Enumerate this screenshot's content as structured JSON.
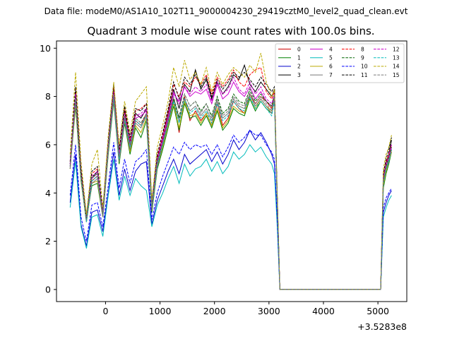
{
  "chart_data": {
    "type": "line",
    "suptitle": "Data file: modeM0/AS1A10_102T11_9000004230_29419cztM0_level2_quad_clean.evt",
    "title": "Quadrant 3 module wise count rates with 100.0s bins.",
    "xlabel": "",
    "ylabel": "",
    "x_offset_label": "+3.5283e8",
    "xlim": [
      -900,
      5530
    ],
    "ylim": [
      -0.5,
      10.3
    ],
    "xticks": [
      "0",
      "1000",
      "2000",
      "3000",
      "4000",
      "5000"
    ],
    "yticks": [
      "0",
      "2",
      "4",
      "6",
      "8",
      "10"
    ],
    "grid": false,
    "legend_position": "top-right",
    "x": [
      -650,
      -550,
      -450,
      -350,
      -250,
      -150,
      -50,
      50,
      150,
      250,
      350,
      450,
      550,
      650,
      750,
      850,
      950,
      1050,
      1150,
      1250,
      1350,
      1450,
      1550,
      1650,
      1750,
      1850,
      1950,
      2050,
      2150,
      2250,
      2350,
      2450,
      2550,
      2650,
      2750,
      2850,
      2950,
      3050,
      3100,
      3150,
      3200,
      5050,
      5100,
      5150,
      5200,
      5250
    ],
    "series": [
      {
        "name": "0",
        "color": "#cc0000",
        "dash": "solid",
        "values": [
          5.1,
          7.9,
          4.6,
          2.8,
          4.5,
          4.7,
          3.1,
          5.8,
          8.0,
          5.4,
          7.1,
          5.9,
          7.0,
          6.8,
          7.3,
          3.4,
          5.2,
          6.1,
          7.0,
          7.9,
          6.5,
          8.0,
          7.0,
          7.4,
          7.0,
          7.3,
          6.8,
          7.7,
          6.8,
          7.1,
          7.8,
          7.5,
          7.3,
          8.1,
          7.7,
          8.0,
          7.8,
          7.5,
          8.1,
          3.9,
          0.0,
          0.0,
          4.4,
          5.0,
          5.4,
          5.8
        ]
      },
      {
        "name": "1",
        "color": "#008000",
        "dash": "solid",
        "values": [
          5.0,
          7.6,
          4.5,
          2.9,
          4.3,
          4.4,
          3.0,
          5.6,
          7.8,
          5.2,
          6.9,
          5.6,
          6.7,
          6.3,
          7.0,
          3.2,
          5.0,
          5.8,
          6.7,
          7.6,
          6.6,
          7.7,
          7.1,
          7.2,
          6.8,
          7.2,
          6.7,
          7.4,
          6.6,
          6.9,
          7.5,
          7.3,
          7.2,
          7.9,
          7.4,
          7.8,
          7.5,
          7.3,
          7.9,
          3.8,
          0.0,
          0.0,
          4.2,
          4.8,
          5.2,
          5.7
        ]
      },
      {
        "name": "2",
        "color": "#0000cc",
        "dash": "solid",
        "values": [
          3.6,
          5.6,
          2.7,
          1.8,
          3.2,
          3.3,
          2.4,
          4.0,
          5.7,
          3.9,
          5.0,
          4.1,
          4.9,
          5.2,
          5.3,
          2.7,
          3.7,
          4.3,
          4.9,
          5.4,
          4.8,
          5.6,
          5.2,
          5.4,
          5.6,
          5.8,
          5.3,
          5.7,
          5.2,
          5.6,
          6.2,
          5.8,
          6.1,
          6.6,
          6.2,
          6.5,
          6.1,
          5.6,
          5.2,
          2.9,
          0.0,
          0.0,
          3.2,
          3.6,
          3.9,
          4.1
        ]
      },
      {
        "name": "3",
        "color": "#000000",
        "dash": "solid",
        "values": [
          5.2,
          8.1,
          4.8,
          2.9,
          4.6,
          4.9,
          3.2,
          6.0,
          8.3,
          5.6,
          7.4,
          6.1,
          7.3,
          7.1,
          7.5,
          3.5,
          5.4,
          6.3,
          7.3,
          8.3,
          7.5,
          8.5,
          8.2,
          9.1,
          8.3,
          8.7,
          7.9,
          8.6,
          8.1,
          8.4,
          8.9,
          8.7,
          9.3,
          8.5,
          8.2,
          8.6,
          8.3,
          8.0,
          8.3,
          4.0,
          0.0,
          0.0,
          4.6,
          5.2,
          5.6,
          6.2
        ]
      },
      {
        "name": "4",
        "color": "#cc00cc",
        "dash": "solid",
        "values": [
          5.1,
          8.0,
          4.7,
          2.8,
          4.6,
          4.8,
          3.1,
          5.9,
          8.1,
          5.5,
          7.2,
          6.0,
          7.1,
          7.2,
          7.4,
          3.4,
          5.3,
          6.2,
          7.1,
          8.1,
          7.8,
          8.4,
          8.0,
          8.2,
          8.1,
          8.3,
          7.7,
          8.5,
          7.9,
          8.1,
          8.6,
          8.2,
          8.0,
          8.4,
          7.9,
          8.2,
          7.8,
          7.6,
          8.0,
          3.9,
          0.0,
          0.0,
          4.5,
          5.1,
          5.4,
          5.9
        ]
      },
      {
        "name": "5",
        "color": "#00bbbb",
        "dash": "solid",
        "values": [
          3.4,
          5.3,
          2.6,
          1.7,
          3.0,
          3.1,
          2.2,
          3.9,
          5.4,
          3.7,
          4.7,
          3.9,
          4.6,
          4.3,
          4.1,
          2.6,
          3.5,
          4.0,
          4.6,
          5.1,
          4.4,
          5.2,
          4.7,
          5.0,
          5.1,
          5.4,
          4.9,
          5.3,
          4.8,
          5.1,
          5.7,
          5.4,
          5.6,
          6.0,
          5.7,
          5.9,
          5.5,
          5.2,
          4.8,
          2.7,
          0.0,
          0.0,
          3.0,
          3.4,
          3.7,
          3.9
        ]
      },
      {
        "name": "6",
        "color": "#bbaa00",
        "dash": "solid",
        "values": [
          5.0,
          7.7,
          4.5,
          2.8,
          4.4,
          4.5,
          3.0,
          5.7,
          7.9,
          5.3,
          7.0,
          5.7,
          6.8,
          6.5,
          7.1,
          3.3,
          5.1,
          5.9,
          6.8,
          7.7,
          6.7,
          7.8,
          7.2,
          7.3,
          6.9,
          7.3,
          6.8,
          7.5,
          6.7,
          7.0,
          7.6,
          7.4,
          7.3,
          8.0,
          7.5,
          7.9,
          7.6,
          7.4,
          8.0,
          3.8,
          0.0,
          0.0,
          4.3,
          4.9,
          5.3,
          5.7
        ]
      },
      {
        "name": "7",
        "color": "#777777",
        "dash": "solid",
        "values": [
          5.0,
          7.8,
          4.6,
          2.8,
          4.4,
          4.6,
          3.0,
          5.7,
          7.9,
          5.3,
          7.0,
          5.8,
          6.9,
          6.7,
          7.2,
          3.3,
          5.1,
          6.0,
          6.9,
          7.8,
          7.0,
          7.9,
          7.4,
          7.6,
          7.2,
          7.5,
          7.0,
          7.8,
          7.1,
          7.3,
          7.9,
          7.6,
          7.5,
          8.1,
          7.6,
          7.9,
          7.6,
          7.3,
          7.9,
          3.8,
          0.0,
          0.0,
          4.4,
          5.0,
          5.3,
          5.8
        ]
      },
      {
        "name": "8",
        "color": "#ff0000",
        "dash": "dashed",
        "values": [
          5.3,
          8.3,
          4.9,
          2.9,
          4.8,
          5.0,
          3.2,
          6.1,
          8.4,
          5.7,
          7.5,
          6.2,
          7.4,
          7.5,
          7.7,
          3.5,
          5.5,
          6.4,
          7.4,
          8.5,
          8.0,
          8.6,
          8.4,
          8.8,
          8.5,
          8.9,
          8.1,
          8.8,
          8.4,
          8.7,
          9.1,
          8.6,
          8.4,
          8.9,
          9.1,
          9.2,
          8.2,
          7.9,
          8.2,
          4.0,
          0.0,
          0.0,
          4.7,
          5.3,
          5.6,
          6.0
        ]
      },
      {
        "name": "9",
        "color": "#006600",
        "dash": "dashed",
        "values": [
          5.2,
          8.0,
          4.7,
          2.9,
          4.7,
          4.8,
          3.1,
          5.9,
          8.1,
          5.5,
          7.2,
          6.0,
          7.1,
          6.9,
          7.3,
          3.4,
          5.3,
          6.1,
          7.0,
          7.9,
          7.1,
          8.1,
          7.6,
          7.8,
          7.4,
          7.7,
          7.2,
          8.0,
          7.3,
          7.5,
          8.1,
          7.8,
          7.7,
          8.3,
          7.8,
          8.1,
          7.8,
          7.6,
          8.1,
          3.9,
          0.0,
          0.0,
          4.5,
          5.1,
          5.5,
          5.9
        ]
      },
      {
        "name": "10",
        "color": "#0000ff",
        "dash": "dashed",
        "values": [
          3.9,
          6.0,
          3.0,
          2.0,
          3.5,
          3.6,
          2.6,
          4.3,
          6.1,
          4.2,
          5.4,
          4.4,
          5.3,
          5.5,
          5.8,
          2.9,
          4.0,
          4.7,
          5.3,
          5.9,
          5.6,
          6.1,
          5.8,
          6.0,
          5.9,
          6.0,
          5.6,
          6.0,
          5.5,
          5.9,
          6.4,
          6.1,
          6.3,
          6.6,
          6.4,
          6.4,
          6.0,
          5.7,
          5.4,
          3.0,
          0.0,
          0.0,
          3.4,
          3.8,
          4.0,
          4.2
        ]
      },
      {
        "name": "11",
        "color": "#000000",
        "dash": "dashed",
        "values": [
          5.3,
          8.4,
          5.0,
          3.0,
          4.9,
          5.1,
          3.3,
          6.2,
          8.5,
          5.8,
          7.6,
          6.3,
          7.5,
          7.4,
          7.7,
          3.6,
          5.6,
          6.5,
          7.5,
          8.6,
          7.9,
          8.8,
          8.5,
          8.9,
          8.4,
          8.8,
          8.0,
          8.7,
          8.3,
          8.6,
          9.0,
          8.8,
          9.0,
          8.7,
          8.4,
          8.8,
          8.5,
          8.2,
          8.4,
          4.1,
          0.0,
          0.0,
          4.8,
          5.4,
          5.8,
          6.3
        ]
      },
      {
        "name": "12",
        "color": "#cc00cc",
        "dash": "dashed",
        "values": [
          5.2,
          8.1,
          4.8,
          2.9,
          4.7,
          4.9,
          3.2,
          6.0,
          8.2,
          5.6,
          7.3,
          6.1,
          7.2,
          7.3,
          7.5,
          3.5,
          5.4,
          6.3,
          7.2,
          8.2,
          7.7,
          8.4,
          8.1,
          8.4,
          8.2,
          8.5,
          7.8,
          8.6,
          8.1,
          8.3,
          8.8,
          8.3,
          8.1,
          8.6,
          8.1,
          8.4,
          7.9,
          7.7,
          8.1,
          4.0,
          0.0,
          0.0,
          4.6,
          5.2,
          5.5,
          6.0
        ]
      },
      {
        "name": "13",
        "color": "#00bbbb",
        "dash": "dashed",
        "values": [
          5.1,
          7.9,
          4.6,
          2.8,
          4.5,
          4.7,
          3.1,
          5.8,
          8.0,
          5.4,
          7.1,
          5.9,
          7.0,
          6.8,
          7.2,
          3.4,
          5.2,
          6.0,
          6.9,
          7.8,
          6.9,
          7.9,
          7.3,
          7.5,
          7.1,
          7.4,
          6.9,
          7.7,
          7.0,
          7.2,
          7.8,
          7.5,
          7.4,
          8.0,
          7.5,
          7.8,
          7.5,
          7.2,
          7.8,
          3.9,
          0.0,
          0.0,
          4.4,
          5.0,
          5.3,
          5.8
        ]
      },
      {
        "name": "14",
        "color": "#bbaa00",
        "dash": "dashed",
        "values": [
          5.6,
          9.0,
          5.3,
          3.1,
          5.2,
          5.8,
          3.4,
          6.4,
          8.6,
          6.0,
          7.8,
          6.5,
          7.8,
          8.1,
          8.4,
          3.7,
          5.9,
          6.8,
          7.8,
          9.2,
          8.4,
          9.5,
          8.7,
          9.0,
          8.5,
          9.2,
          8.2,
          9.0,
          8.5,
          8.9,
          9.2,
          9.0,
          8.8,
          9.3,
          9.0,
          9.8,
          8.6,
          8.0,
          8.3,
          4.2,
          0.0,
          0.0,
          5.0,
          5.6,
          5.9,
          6.4
        ]
      },
      {
        "name": "15",
        "color": "#777777",
        "dash": "dashed",
        "values": [
          5.1,
          7.9,
          4.7,
          2.9,
          4.6,
          4.8,
          3.1,
          5.9,
          8.1,
          5.5,
          7.2,
          6.0,
          7.1,
          6.9,
          7.3,
          3.4,
          5.3,
          6.1,
          7.0,
          8.0,
          7.2,
          8.1,
          7.6,
          7.8,
          7.3,
          7.7,
          7.1,
          7.9,
          7.2,
          7.4,
          8.0,
          7.7,
          7.6,
          8.2,
          7.7,
          8.0,
          7.7,
          7.4,
          8.0,
          3.9,
          0.0,
          0.0,
          4.5,
          5.1,
          5.4,
          5.8
        ]
      }
    ]
  }
}
